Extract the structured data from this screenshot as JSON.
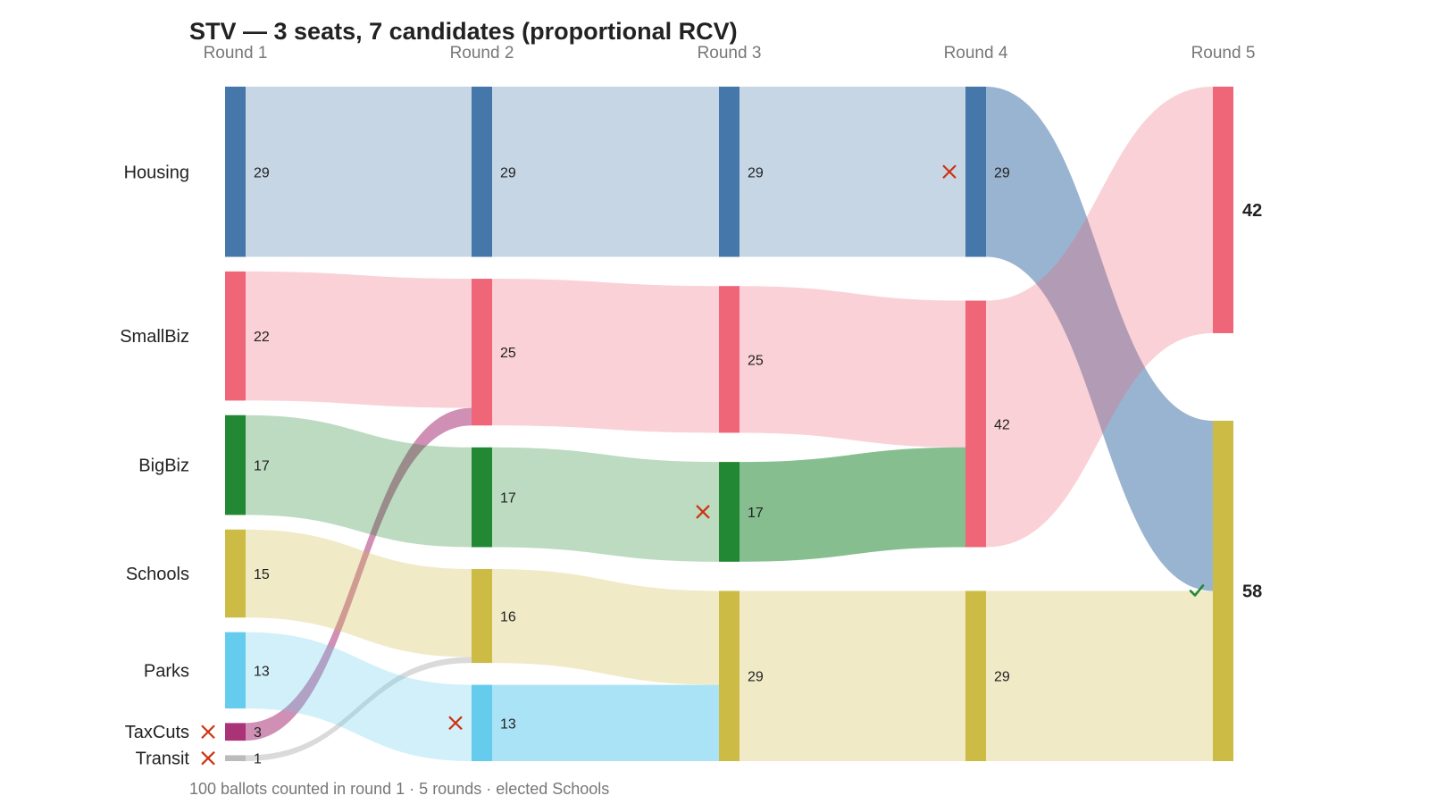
{
  "chart_data": {
    "type": "sankey",
    "title": "STV — 3 seats, 7 candidates (proportional RCV)",
    "footer": "100 ballots counted in round 1 · 5 rounds · elected Schools",
    "rounds": [
      "Round 1",
      "Round 2",
      "Round 3",
      "Round 4",
      "Round 5"
    ],
    "candidates": [
      {
        "name": "Housing",
        "color": "#4677aa"
      },
      {
        "name": "SmallBiz",
        "color": "#ee6677"
      },
      {
        "name": "BigBiz",
        "color": "#228833"
      },
      {
        "name": "Schools",
        "color": "#ccbb44"
      },
      {
        "name": "Parks",
        "color": "#66ccee"
      },
      {
        "name": "TaxCuts",
        "color": "#aa3377"
      },
      {
        "name": "Transit",
        "color": "#bbbbbb"
      }
    ],
    "votes": [
      {
        "round": "Round 1",
        "values": {
          "Housing": 29,
          "SmallBiz": 22,
          "BigBiz": 17,
          "Schools": 15,
          "Parks": 13,
          "TaxCuts": 3,
          "Transit": 1
        }
      },
      {
        "round": "Round 2",
        "values": {
          "Housing": 29,
          "SmallBiz": 25,
          "BigBiz": 17,
          "Schools": 16,
          "Parks": 13
        }
      },
      {
        "round": "Round 3",
        "values": {
          "Housing": 29,
          "SmallBiz": 25,
          "BigBiz": 17,
          "Schools": 29
        }
      },
      {
        "round": "Round 4",
        "values": {
          "Housing": 29,
          "SmallBiz": 42,
          "Schools": 29
        }
      },
      {
        "round": "Round 5",
        "values": {
          "SmallBiz": 42,
          "Schools": 58
        }
      }
    ],
    "eliminated": [
      {
        "candidate": "TaxCuts",
        "round": "Round 1"
      },
      {
        "candidate": "Transit",
        "round": "Round 1"
      },
      {
        "candidate": "Parks",
        "round": "Round 2"
      },
      {
        "candidate": "BigBiz",
        "round": "Round 3"
      },
      {
        "candidate": "Housing",
        "round": "Round 4"
      }
    ],
    "elected": [
      {
        "candidate": "Schools",
        "round": "Round 5"
      }
    ],
    "transfers": [
      {
        "from_round": "Round 1",
        "from": "Housing",
        "to": "Housing",
        "votes": 29
      },
      {
        "from_round": "Round 1",
        "from": "SmallBiz",
        "to": "SmallBiz",
        "votes": 22
      },
      {
        "from_round": "Round 1",
        "from": "TaxCuts",
        "to": "SmallBiz",
        "votes": 3
      },
      {
        "from_round": "Round 1",
        "from": "BigBiz",
        "to": "BigBiz",
        "votes": 17
      },
      {
        "from_round": "Round 1",
        "from": "Schools",
        "to": "Schools",
        "votes": 15
      },
      {
        "from_round": "Round 1",
        "from": "Transit",
        "to": "Schools",
        "votes": 1
      },
      {
        "from_round": "Round 1",
        "from": "Parks",
        "to": "Parks",
        "votes": 13
      },
      {
        "from_round": "Round 2",
        "from": "Housing",
        "to": "Housing",
        "votes": 29
      },
      {
        "from_round": "Round 2",
        "from": "SmallBiz",
        "to": "SmallBiz",
        "votes": 25
      },
      {
        "from_round": "Round 2",
        "from": "BigBiz",
        "to": "BigBiz",
        "votes": 17
      },
      {
        "from_round": "Round 2",
        "from": "Schools",
        "to": "Schools",
        "votes": 16
      },
      {
        "from_round": "Round 2",
        "from": "Parks",
        "to": "Schools",
        "votes": 13
      },
      {
        "from_round": "Round 3",
        "from": "Housing",
        "to": "Housing",
        "votes": 29
      },
      {
        "from_round": "Round 3",
        "from": "SmallBiz",
        "to": "SmallBiz",
        "votes": 25
      },
      {
        "from_round": "Round 3",
        "from": "BigBiz",
        "to": "SmallBiz",
        "votes": 17
      },
      {
        "from_round": "Round 3",
        "from": "Schools",
        "to": "Schools",
        "votes": 29
      },
      {
        "from_round": "Round 4",
        "from": "Housing",
        "to": "Schools",
        "votes": 29
      },
      {
        "from_round": "Round 4",
        "from": "SmallBiz",
        "to": "SmallBiz",
        "votes": 42
      },
      {
        "from_round": "Round 4",
        "from": "Schools",
        "to": "Schools",
        "votes": 29
      }
    ]
  }
}
